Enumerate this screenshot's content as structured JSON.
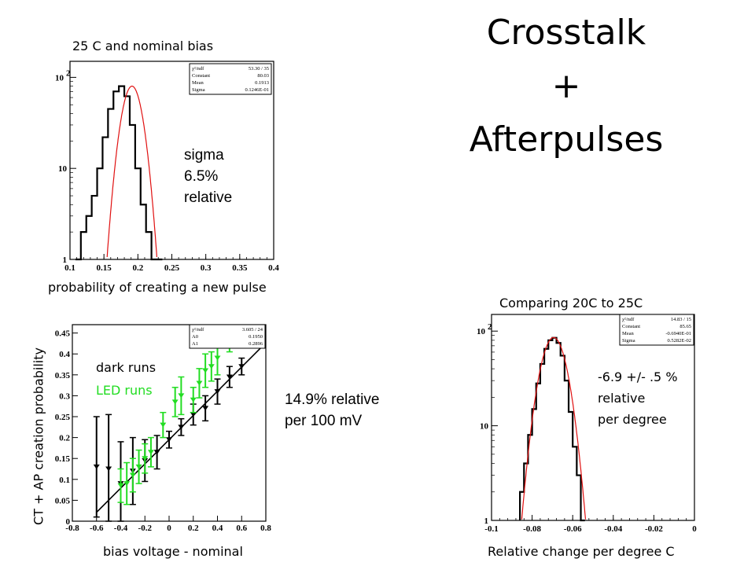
{
  "slide": {
    "title_lines": [
      "Crosstalk",
      "+",
      "Afterpulses"
    ]
  },
  "panel_top": {
    "caption": "25 C and nominal bias",
    "xlabel": "probability of creating a new pulse",
    "annotation_lines": [
      "sigma",
      "6.5%",
      "relative"
    ],
    "x_ticks": [
      "0.1",
      "0.15",
      "0.2",
      "0.25",
      "0.3",
      "0.35",
      "0.4"
    ],
    "y_ticks": [
      {
        "base": "1",
        "exp": ""
      },
      {
        "base": "10",
        "exp": ""
      },
      {
        "base": "10",
        "exp": "2"
      }
    ],
    "stats": [
      [
        "χ²/ndf",
        "53.30  /  35"
      ],
      [
        "Constant",
        "80.03"
      ],
      [
        "Mean",
        "0.1913"
      ],
      [
        "Sigma",
        "0.1246E-01"
      ]
    ]
  },
  "panel_bottom_left": {
    "ylabel": "CT + AP creation probability",
    "xlabel": "bias voltage - nominal",
    "legend_dark": "dark runs",
    "legend_led": "LED runs",
    "x_ticks": [
      "-0.8",
      "-0.6",
      "-0.4",
      "-0.2",
      "0",
      "0.2",
      "0.4",
      "0.6",
      "0.8"
    ],
    "y_ticks": [
      "0",
      "0.05",
      "0.1",
      "0.15",
      "0.2",
      "0.25",
      "0.3",
      "0.35",
      "0.4",
      "0.45"
    ],
    "stats": [
      [
        "χ²/ndf",
        "3.605  /  24"
      ],
      [
        "A0",
        "0.1950"
      ],
      [
        "A1",
        "0.2896"
      ]
    ]
  },
  "middle_note": {
    "lines": [
      "14.9% relative",
      "per 100 mV"
    ]
  },
  "panel_right": {
    "caption": "Comparing 20C to 25C",
    "xlabel": "Relative change per degree C",
    "annotation_lines": [
      "-6.9 +/-   .5 %",
      "relative",
      "per degree"
    ],
    "x_ticks": [
      "-0.1",
      "-0.08",
      "-0.06",
      "-0.04",
      "-0.02",
      "0"
    ],
    "y_ticks": [
      {
        "base": "1",
        "exp": ""
      },
      {
        "base": "10",
        "exp": ""
      },
      {
        "base": "10",
        "exp": "2"
      }
    ],
    "stats": [
      [
        "χ²/ndf",
        "14.83  /  15"
      ],
      [
        "Constant",
        "85.65"
      ],
      [
        "Mean",
        "-0.6940E-01"
      ],
      [
        "Sigma",
        "0.5282E-02"
      ]
    ]
  },
  "colors": {
    "dark_points": "#000000",
    "led_points": "#22dd22",
    "fit_curve": "#e01010",
    "fit_line": "#000000"
  },
  "chart_data": [
    {
      "type": "histogram",
      "title": "25 C and nominal bias",
      "xlabel": "probability of creating a new pulse",
      "xlim": [
        0.1,
        0.4
      ],
      "yscale": "log",
      "ylim": [
        1,
        150
      ],
      "fit": {
        "type": "gaussian",
        "constant": 80.03,
        "mean": 0.1913,
        "sigma": 0.01246
      },
      "bins_x": [
        0.112,
        0.12,
        0.128,
        0.136,
        0.144,
        0.152,
        0.16,
        0.168,
        0.176,
        0.184,
        0.192,
        0.2,
        0.208,
        0.216,
        0.224,
        0.232
      ],
      "counts": [
        1,
        2,
        3,
        5,
        10,
        22,
        45,
        70,
        80,
        62,
        30,
        10,
        4,
        2,
        1,
        1
      ]
    },
    {
      "type": "scatter",
      "title": "",
      "xlabel": "bias voltage - nominal",
      "ylabel": "CT + AP creation probability",
      "xlim": [
        -0.8,
        0.8
      ],
      "ylim": [
        0,
        0.47
      ],
      "fit": {
        "type": "linear",
        "A0": 0.195,
        "A1": 0.2896
      },
      "series": [
        {
          "name": "dark runs",
          "x": [
            -0.6,
            -0.5,
            -0.4,
            -0.3,
            -0.2,
            -0.1,
            0,
            0.1,
            0.2,
            0.3,
            0.4,
            0.5,
            0.6
          ],
          "y": [
            0.13,
            0.125,
            0.09,
            0.12,
            0.145,
            0.165,
            0.195,
            0.225,
            0.255,
            0.27,
            0.31,
            0.345,
            0.37
          ]
        },
        {
          "name": "LED runs",
          "x": [
            -0.4,
            -0.35,
            -0.3,
            -0.25,
            -0.2,
            -0.15,
            -0.05,
            0.05,
            0.1,
            0.2,
            0.25,
            0.3,
            0.35,
            0.4,
            0.5
          ],
          "y": [
            0.085,
            0.09,
            0.11,
            0.13,
            0.15,
            0.165,
            0.23,
            0.285,
            0.3,
            0.29,
            0.33,
            0.36,
            0.37,
            0.39,
            0.43
          ]
        }
      ]
    },
    {
      "type": "histogram",
      "title": "Comparing 20C to 25C",
      "xlabel": "Relative change per degree C",
      "xlim": [
        -0.1,
        0.0
      ],
      "yscale": "log",
      "ylim": [
        1,
        150
      ],
      "fit": {
        "type": "gaussian",
        "constant": 85.65,
        "mean": -0.0694,
        "sigma": 0.005282
      },
      "bins_x": [
        -0.085,
        -0.083,
        -0.081,
        -0.079,
        -0.077,
        -0.075,
        -0.073,
        -0.071,
        -0.069,
        -0.067,
        -0.065,
        -0.063,
        -0.061,
        -0.059,
        -0.057,
        -0.055
      ],
      "counts": [
        2,
        4,
        8,
        15,
        28,
        45,
        65,
        80,
        85,
        75,
        55,
        30,
        14,
        6,
        3,
        1
      ]
    }
  ]
}
